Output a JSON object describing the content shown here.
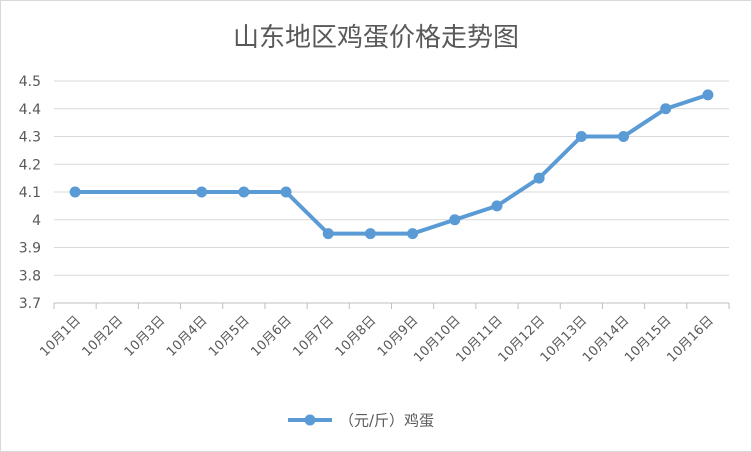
{
  "chart_data": {
    "type": "line",
    "title": "山东地区鸡蛋价格走势图",
    "xlabel": "",
    "ylabel": "",
    "categories": [
      "10月1日",
      "10月2日",
      "10月3日",
      "10月4日",
      "10月5日",
      "10月6日",
      "10月7日",
      "10月8日",
      "10月9日",
      "10月10日",
      "10月11日",
      "10月12日",
      "10月13日",
      "10月14日",
      "10月15日",
      "10月16日"
    ],
    "y_ticks": [
      "3.7",
      "3.8",
      "3.9",
      "4",
      "4.1",
      "4.2",
      "4.3",
      "4.4",
      "4.5"
    ],
    "ylim": [
      3.7,
      4.5
    ],
    "grid": true,
    "legend_position": "bottom",
    "series": [
      {
        "name": "（元/斤）鸡蛋",
        "color": "#5b9bd5",
        "points": [
          {
            "x": "10月1日",
            "y": 4.1
          },
          {
            "x": "10月4日",
            "y": 4.1
          },
          {
            "x": "10月5日",
            "y": 4.1
          },
          {
            "x": "10月6日",
            "y": 4.1
          },
          {
            "x": "10月7日",
            "y": 3.95
          },
          {
            "x": "10月8日",
            "y": 3.95
          },
          {
            "x": "10月9日",
            "y": 3.95
          },
          {
            "x": "10月10日",
            "y": 4.0
          },
          {
            "x": "10月11日",
            "y": 4.05
          },
          {
            "x": "10月12日",
            "y": 4.15
          },
          {
            "x": "10月13日",
            "y": 4.3
          },
          {
            "x": "10月14日",
            "y": 4.3
          },
          {
            "x": "10月15日",
            "y": 4.4
          },
          {
            "x": "10月16日",
            "y": 4.45
          }
        ]
      }
    ]
  }
}
